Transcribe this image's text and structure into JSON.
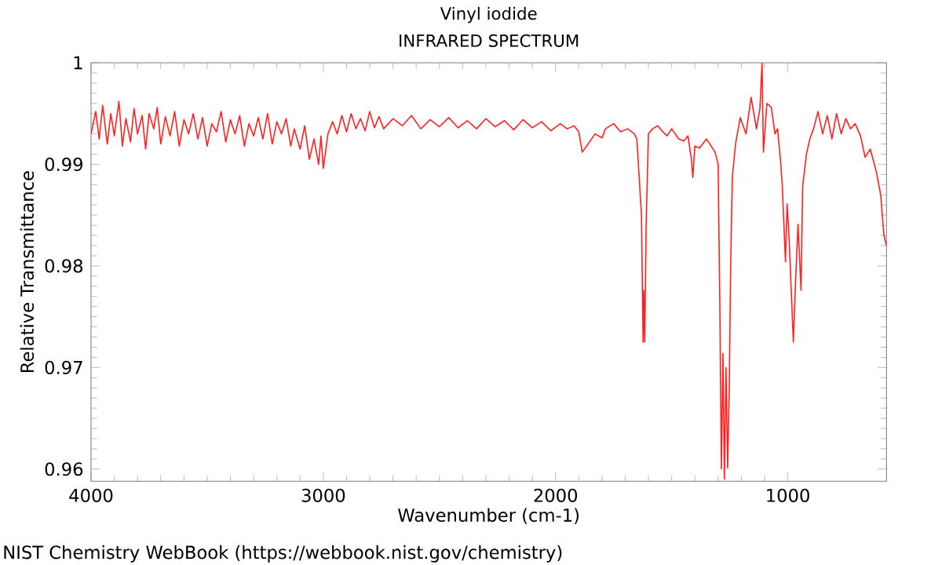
{
  "chart_data": {
    "type": "line",
    "title": "Vinyl iodide",
    "subtitle": "INFRARED SPECTRUM",
    "xlabel": "Wavenumber (cm-1)",
    "ylabel": "Relative Transmittance",
    "annotations": [
      "NIST Chemistry WebBook (https://webbook.nist.gov/chemistry)"
    ],
    "xlim": [
      4000,
      575
    ],
    "ylim": [
      0.9588,
      1
    ],
    "xticks": [
      4000,
      3000,
      2000,
      1000
    ],
    "yticks": [
      {
        "value": 0.96,
        "label": "0.96"
      },
      {
        "value": 0.97,
        "label": "0.97"
      },
      {
        "value": 0.98,
        "label": "0.98"
      },
      {
        "value": 0.99,
        "label": "0.99"
      },
      {
        "value": 1,
        "label": "1"
      }
    ],
    "marker": "none",
    "line_style": "solid",
    "series": [
      {
        "color": "#ff2020",
        "x": [
          4000,
          3980,
          3965,
          3950,
          3930,
          3915,
          3900,
          3880,
          3865,
          3850,
          3830,
          3815,
          3800,
          3780,
          3765,
          3750,
          3730,
          3715,
          3700,
          3680,
          3660,
          3640,
          3620,
          3600,
          3580,
          3560,
          3540,
          3520,
          3500,
          3480,
          3460,
          3440,
          3420,
          3400,
          3380,
          3360,
          3340,
          3320,
          3300,
          3280,
          3260,
          3240,
          3220,
          3200,
          3180,
          3160,
          3140,
          3125,
          3100,
          3080,
          3060,
          3040,
          3020,
          3010,
          3000,
          2980,
          2960,
          2940,
          2920,
          2900,
          2880,
          2860,
          2840,
          2820,
          2800,
          2780,
          2760,
          2740,
          2700,
          2660,
          2620,
          2580,
          2540,
          2500,
          2460,
          2420,
          2380,
          2340,
          2300,
          2260,
          2220,
          2180,
          2140,
          2100,
          2060,
          2020,
          1980,
          1950,
          1920,
          1900,
          1885,
          1860,
          1830,
          1800,
          1785,
          1750,
          1720,
          1690,
          1660,
          1650,
          1630,
          1623,
          1620,
          1616,
          1610,
          1600,
          1582,
          1560,
          1542,
          1520,
          1500,
          1470,
          1448,
          1430,
          1415,
          1409,
          1400,
          1380,
          1350,
          1313,
          1300,
          1292,
          1286,
          1279,
          1273,
          1266,
          1259,
          1252,
          1246,
          1239,
          1225,
          1205,
          1180,
          1158,
          1135,
          1120,
          1111,
          1105,
          1090,
          1071,
          1055,
          1044,
          1030,
          1024,
          1010,
          1003,
          995,
          976,
          966,
          956,
          943,
          936,
          920,
          905,
          889,
          870,
          850,
          830,
          810,
          790,
          770,
          750,
          730,
          710,
          687,
          667,
          645,
          620,
          600,
          586,
          575
        ],
        "values": [
          0.993,
          0.9952,
          0.9925,
          0.9958,
          0.992,
          0.995,
          0.9928,
          0.9962,
          0.9918,
          0.9945,
          0.9922,
          0.9955,
          0.993,
          0.9948,
          0.9915,
          0.995,
          0.9935,
          0.9956,
          0.992,
          0.9947,
          0.9928,
          0.9952,
          0.9918,
          0.9944,
          0.993,
          0.995,
          0.9925,
          0.9946,
          0.9918,
          0.994,
          0.9932,
          0.9952,
          0.9922,
          0.9944,
          0.993,
          0.9948,
          0.9918,
          0.994,
          0.9928,
          0.9946,
          0.9925,
          0.995,
          0.992,
          0.9942,
          0.993,
          0.9945,
          0.9918,
          0.9935,
          0.9915,
          0.9938,
          0.9905,
          0.9925,
          0.99,
          0.9928,
          0.9896,
          0.993,
          0.9942,
          0.993,
          0.9948,
          0.9932,
          0.995,
          0.9935,
          0.9945,
          0.9933,
          0.9952,
          0.9936,
          0.9947,
          0.9935,
          0.9945,
          0.9938,
          0.9948,
          0.9935,
          0.9944,
          0.9937,
          0.9946,
          0.9936,
          0.9943,
          0.9935,
          0.9945,
          0.9937,
          0.9943,
          0.9934,
          0.9944,
          0.9936,
          0.9942,
          0.9933,
          0.994,
          0.9935,
          0.9938,
          0.9932,
          0.9912,
          0.992,
          0.993,
          0.9926,
          0.9935,
          0.994,
          0.9932,
          0.9935,
          0.993,
          0.9925,
          0.985,
          0.9725,
          0.9776,
          0.9725,
          0.984,
          0.993,
          0.9935,
          0.9938,
          0.9933,
          0.9928,
          0.9935,
          0.9925,
          0.9923,
          0.9928,
          0.9905,
          0.9887,
          0.9918,
          0.9916,
          0.9925,
          0.9912,
          0.99,
          0.975,
          0.96,
          0.9714,
          0.959,
          0.97,
          0.9601,
          0.968,
          0.98,
          0.9887,
          0.992,
          0.9946,
          0.993,
          0.9966,
          0.9935,
          0.9955,
          1.0,
          0.9912,
          0.996,
          0.9956,
          0.993,
          0.9935,
          0.99,
          0.988,
          0.9804,
          0.9861,
          0.983,
          0.9725,
          0.9787,
          0.9841,
          0.9776,
          0.9878,
          0.991,
          0.9925,
          0.9935,
          0.9952,
          0.993,
          0.9948,
          0.9925,
          0.995,
          0.993,
          0.9945,
          0.9935,
          0.994,
          0.9928,
          0.9907,
          0.9915,
          0.9894,
          0.987,
          0.983,
          0.982
        ]
      }
    ]
  }
}
